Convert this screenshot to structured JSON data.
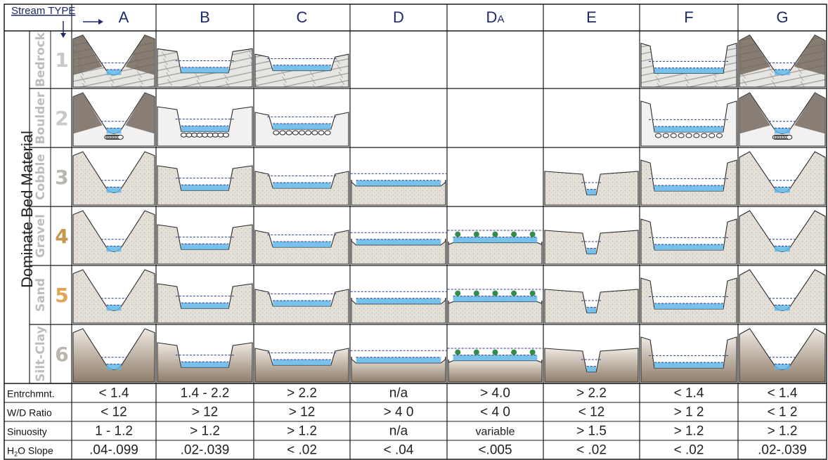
{
  "stream_type_label": "Stream TYPE",
  "bed_material_title": "Dominate Bed Material",
  "columns": [
    {
      "id": "A",
      "label": "A"
    },
    {
      "id": "B",
      "label": "B"
    },
    {
      "id": "C",
      "label": "C"
    },
    {
      "id": "D",
      "label": "D"
    },
    {
      "id": "DA",
      "label": "DA"
    },
    {
      "id": "E",
      "label": "E"
    },
    {
      "id": "F",
      "label": "F"
    },
    {
      "id": "G",
      "label": "G"
    }
  ],
  "materials": [
    {
      "num": "1",
      "name": "Bedrock",
      "num_color": "#c8c8c8"
    },
    {
      "num": "2",
      "name": "Boulder",
      "num_color": "#c8c8c8"
    },
    {
      "num": "3",
      "name": "Cobble",
      "num_color": "#b9b6ad"
    },
    {
      "num": "4",
      "name": "Gravel",
      "num_color": "#c8964c"
    },
    {
      "num": "5",
      "name": "Sand",
      "num_color": "#e0a452"
    },
    {
      "num": "6",
      "name": "Silt-Clay",
      "num_color": "#b9b6ad"
    }
  ],
  "availability": {
    "A": [
      1,
      1,
      1,
      1,
      1,
      1
    ],
    "B": [
      1,
      1,
      1,
      1,
      1,
      1
    ],
    "C": [
      1,
      1,
      1,
      1,
      1,
      1
    ],
    "D": [
      0,
      0,
      1,
      1,
      1,
      1
    ],
    "DA": [
      0,
      0,
      0,
      1,
      1,
      1
    ],
    "E": [
      0,
      0,
      1,
      1,
      1,
      1
    ],
    "F": [
      1,
      1,
      1,
      1,
      1,
      1
    ],
    "G": [
      1,
      1,
      1,
      1,
      1,
      1
    ]
  },
  "metrics": [
    {
      "label": "Entrchmnt.",
      "values": [
        "< 1.4",
        "1.4 - 2.2",
        "> 2.2",
        "n/a",
        "> 4.0",
        "> 2.2",
        "< 1.4",
        "< 1.4"
      ]
    },
    {
      "label": "W/D Ratio",
      "values": [
        "< 12",
        "> 12",
        "> 12",
        "> 4 0",
        "< 4 0",
        "< 12",
        "> 1 2",
        "< 1 2"
      ]
    },
    {
      "label": "Sinuosity",
      "values": [
        "1 - 1.2",
        "> 1.2",
        "> 1.2",
        "n/a",
        "variable",
        "> 1.5",
        "> 1.2",
        "> 1.2"
      ]
    },
    {
      "label": "H2O Slope",
      "values": [
        ".04-.099",
        ".02-.039",
        "< .02",
        "< .04",
        "<.005",
        "< .02",
        "< .02",
        ".02-.039"
      ]
    }
  ],
  "colors": {
    "grid": "#1a1a1a",
    "water": "#5fb6e6",
    "header_text": "#1f2a6b",
    "rock_dark": "#6e6256",
    "sediment": "#ddd9cf",
    "silt": "#9c8b79",
    "vegetation": "#2f8c4a"
  }
}
